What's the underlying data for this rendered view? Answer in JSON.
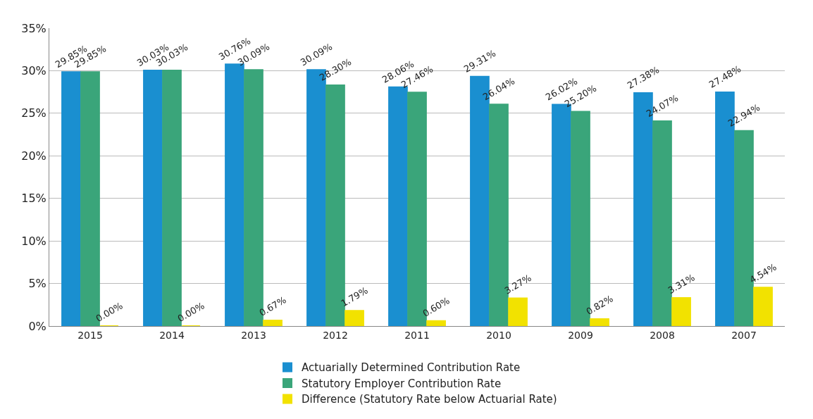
{
  "chart_data": {
    "type": "bar",
    "categories": [
      "2015",
      "2014",
      "2013",
      "2012",
      "2011",
      "2010",
      "2009",
      "2008",
      "2007"
    ],
    "series": [
      {
        "name": "Actuarially Determined Contribution Rate",
        "color": "#1a8fd0",
        "values": [
          29.85,
          30.03,
          30.76,
          30.09,
          28.06,
          29.31,
          26.02,
          27.38,
          27.48
        ],
        "value_labels": [
          "29.85%",
          "30.03%",
          "30.76%",
          "30.09%",
          "28.06%",
          "29.31%",
          "26.02%",
          "27.38%",
          "27.48%"
        ]
      },
      {
        "name": "Statutory Employer Contribution Rate",
        "color": "#3aa57a",
        "values": [
          29.85,
          30.03,
          30.09,
          28.3,
          27.46,
          26.04,
          25.2,
          24.07,
          22.94
        ],
        "value_labels": [
          "29.85%",
          "30.03%",
          "30.09%",
          "28.30%",
          "27.46%",
          "26.04%",
          "25.20%",
          "24.07%",
          "22.94%"
        ]
      },
      {
        "name": "Difference (Statutory Rate below Actuarial Rate)",
        "color": "#f2e200",
        "values": [
          0.0,
          0.0,
          0.67,
          1.79,
          0.6,
          3.27,
          0.82,
          3.31,
          4.54
        ],
        "value_labels": [
          "0.00%",
          "0.00%",
          "0.67%",
          "1.79%",
          "0.60%",
          "3.27%",
          "0.82%",
          "3.31%",
          "4.54%"
        ]
      }
    ],
    "ylim": [
      0,
      35
    ],
    "yticks": [
      {
        "value": 0,
        "label": "0%"
      },
      {
        "value": 5,
        "label": "5%"
      },
      {
        "value": 10,
        "label": "10%"
      },
      {
        "value": 15,
        "label": "15%"
      },
      {
        "value": 20,
        "label": "20%"
      },
      {
        "value": 25,
        "label": "25%"
      },
      {
        "value": 30,
        "label": "30%"
      },
      {
        "value": 35,
        "label": "35%"
      }
    ],
    "grid": "y",
    "legend": "bottom"
  }
}
